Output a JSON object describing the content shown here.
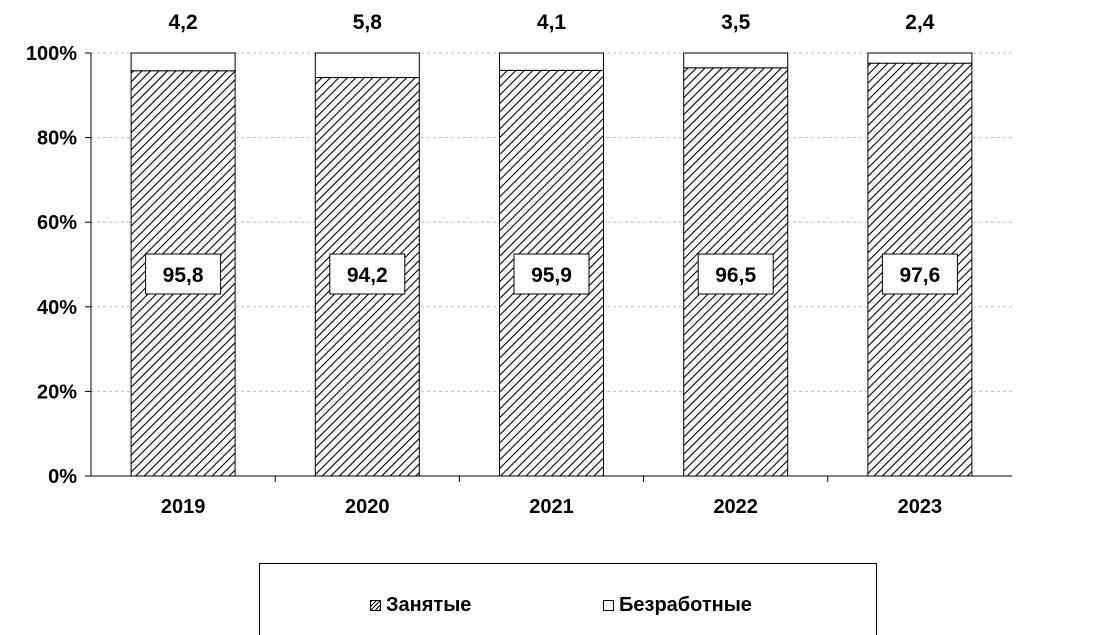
{
  "chart_data": {
    "type": "bar",
    "stacked": true,
    "percent_stacked": true,
    "categories": [
      "2019",
      "2020",
      "2021",
      "2022",
      "2023"
    ],
    "series": [
      {
        "name": "Занятые",
        "values": [
          95.8,
          94.2,
          95.9,
          96.5,
          97.6
        ],
        "labels": [
          "95,8",
          "94,2",
          "95,9",
          "96,5",
          "97,6"
        ],
        "pattern": "diagonal-hatch"
      },
      {
        "name": "Безработные",
        "values": [
          4.2,
          5.8,
          4.1,
          3.5,
          2.4
        ],
        "labels": [
          "4,2",
          "5,8",
          "4,1",
          "3,5",
          "2,4"
        ],
        "pattern": "solid-white"
      }
    ],
    "y_ticks": [
      "0%",
      "20%",
      "40%",
      "60%",
      "80%",
      "100%"
    ],
    "ylim": [
      0,
      100
    ],
    "grid": true,
    "legend_position": "bottom"
  },
  "legend": {
    "employed": "Занятые",
    "unemployed": "Безработные"
  }
}
